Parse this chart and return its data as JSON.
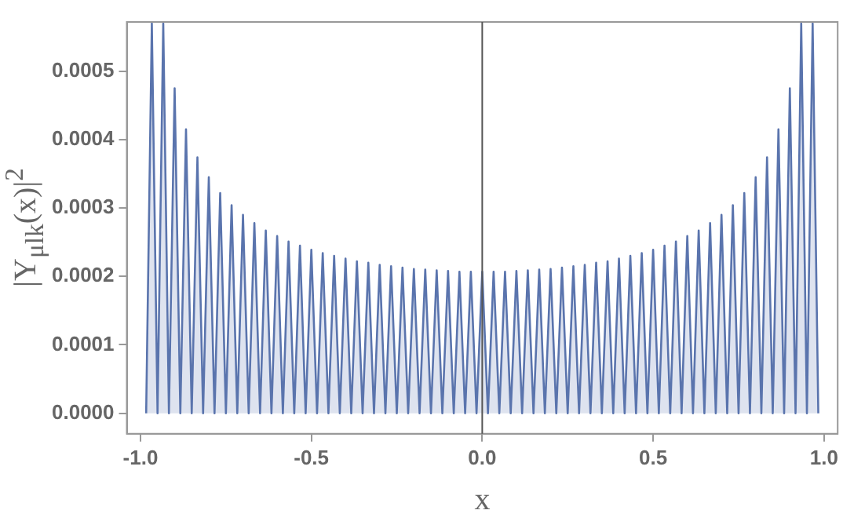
{
  "chart_data": {
    "type": "area",
    "xlabel": "x",
    "ylabel": "|Y$_{μlk}$(x)|$^{2}$",
    "xlim": [
      -1.04,
      1.04
    ],
    "ylim": [
      -3e-05,
      0.000572
    ],
    "xticks": [
      {
        "value": -1,
        "label": "-1.0"
      },
      {
        "value": -0.5,
        "label": "-0.5"
      },
      {
        "value": 0,
        "label": "0.0"
      },
      {
        "value": 0.5,
        "label": "0.5"
      },
      {
        "value": 1,
        "label": "1.0"
      }
    ],
    "yticks": [
      {
        "value": 0,
        "label": "0.0000"
      },
      {
        "value": 0.0001,
        "label": "0.0001"
      },
      {
        "value": 0.0002,
        "label": "0.0002"
      },
      {
        "value": 0.0003,
        "label": "0.0003"
      },
      {
        "value": 0.0004,
        "label": "0.0004"
      },
      {
        "value": 0.0005,
        "label": "0.0005"
      }
    ],
    "ref_lines": [
      {
        "axis": "x",
        "value": 0,
        "color": "#555555"
      }
    ],
    "series": [
      {
        "color": "#5a74ad",
        "x": [
          -0.9833,
          -0.9667,
          -0.95,
          -0.9333,
          -0.9167,
          -0.9,
          -0.8833,
          -0.8667,
          -0.85,
          -0.8333,
          -0.8167,
          -0.8,
          -0.7833,
          -0.7667,
          -0.75,
          -0.7333,
          -0.7167,
          -0.7,
          -0.6833,
          -0.6667,
          -0.65,
          -0.6333,
          -0.6167,
          -0.6,
          -0.5833,
          -0.5667,
          -0.55,
          -0.5333,
          -0.5167,
          -0.5,
          -0.4833,
          -0.4667,
          -0.45,
          -0.4333,
          -0.4167,
          -0.4,
          -0.3833,
          -0.3667,
          -0.35,
          -0.3333,
          -0.3167,
          -0.3,
          -0.2833,
          -0.2667,
          -0.25,
          -0.2333,
          -0.2167,
          -0.2,
          -0.1833,
          -0.1667,
          -0.15,
          -0.1333,
          -0.1167,
          -0.1,
          -0.0833,
          -0.0667,
          -0.05,
          -0.0333,
          -0.0167,
          0,
          0.0167,
          0.0333,
          0.05,
          0.0667,
          0.0833,
          0.1,
          0.1167,
          0.1333,
          0.15,
          0.1667,
          0.1833,
          0.2,
          0.2167,
          0.2333,
          0.25,
          0.2667,
          0.2833,
          0.3,
          0.3167,
          0.3333,
          0.35,
          0.3667,
          0.3833,
          0.4,
          0.4167,
          0.4333,
          0.45,
          0.4667,
          0.4833,
          0.5,
          0.5167,
          0.5333,
          0.55,
          0.5667,
          0.5833,
          0.6,
          0.6167,
          0.6333,
          0.65,
          0.6667,
          0.6833,
          0.7,
          0.7167,
          0.7333,
          0.75,
          0.7667,
          0.7833,
          0.8,
          0.8167,
          0.8333,
          0.85,
          0.8667,
          0.8833,
          0.9,
          0.9167,
          0.9333,
          0.95,
          0.9667,
          0.9833
        ],
        "values": [
          0,
          0.00057,
          0,
          0.00057,
          0,
          0.000475,
          0,
          0.000415,
          0,
          0.000374,
          0,
          0.000345,
          0,
          0.000322,
          0,
          0.000304,
          0,
          0.00029,
          0,
          0.000278,
          0,
          0.000267,
          0,
          0.000259,
          0,
          0.000251,
          0,
          0.000245,
          0,
          0.000239,
          0,
          0.000234,
          0,
          0.00023,
          0,
          0.000226,
          0,
          0.000222,
          0,
          0.00022,
          0,
          0.000217,
          0,
          0.000215,
          0,
          0.000213,
          0,
          0.000211,
          0,
          0.00021,
          0,
          0.000209,
          0,
          0.000208,
          0,
          0.000207,
          0,
          0.000207,
          0,
          0.000207,
          0,
          0.000207,
          0,
          0.000207,
          0,
          0.000208,
          0,
          0.000209,
          0,
          0.00021,
          0,
          0.000211,
          0,
          0.000213,
          0,
          0.000215,
          0,
          0.000217,
          0,
          0.00022,
          0,
          0.000222,
          0,
          0.000226,
          0,
          0.00023,
          0,
          0.000234,
          0,
          0.000239,
          0,
          0.000245,
          0,
          0.000251,
          0,
          0.000259,
          0,
          0.000267,
          0,
          0.000278,
          0,
          0.00029,
          0,
          0.000304,
          0,
          0.000322,
          0,
          0.000345,
          0,
          0.000374,
          0,
          0.000415,
          0,
          0.000475,
          0,
          0.00057,
          0,
          0.00057,
          0
        ]
      }
    ]
  }
}
